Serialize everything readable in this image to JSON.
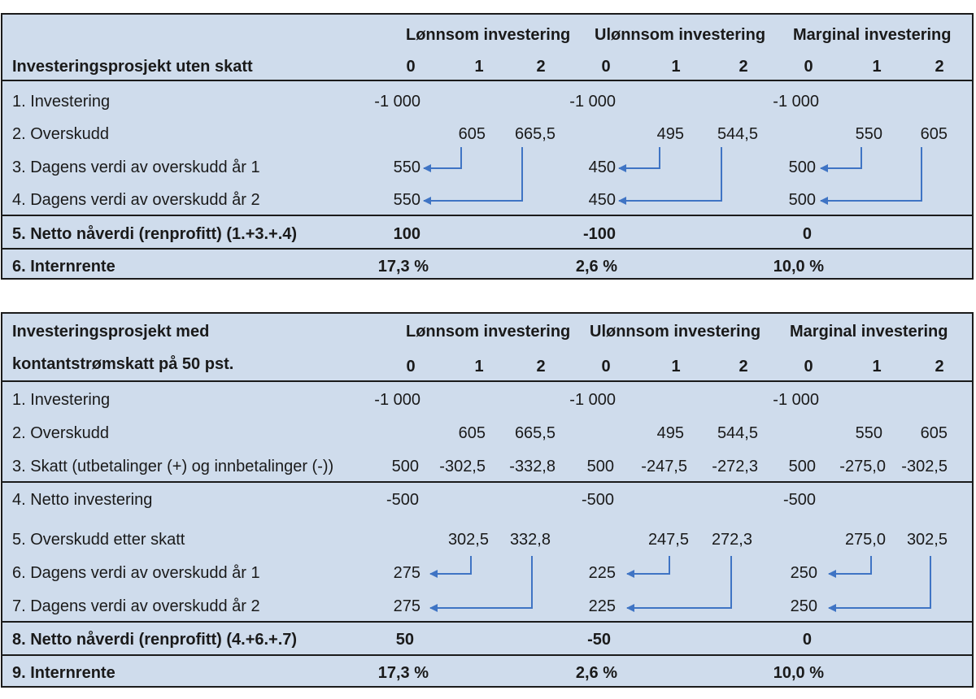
{
  "colors": {
    "panel_bg": "#cfdcec",
    "border": "#1b1b1b",
    "arrow": "#3f74c4"
  },
  "groups": [
    "Lønnsom investering",
    "Ulønnsom investering",
    "Marginal investering"
  ],
  "years": [
    "0",
    "1",
    "2"
  ],
  "table1": {
    "title": "Investeringsprosjekt uten skatt",
    "rows": [
      {
        "label": "1. Investering",
        "cells": [
          "-1 000",
          "",
          "",
          "-1 000",
          "",
          "",
          "-1 000",
          "",
          ""
        ]
      },
      {
        "label": "2. Overskudd",
        "cells": [
          "",
          "605",
          "665,5",
          "",
          "495",
          "544,5",
          "",
          "550",
          "605"
        ]
      },
      {
        "label": "3. Dagens verdi av overskudd år 1",
        "cells": [
          "550",
          "",
          "",
          "450",
          "",
          "",
          "500",
          "",
          ""
        ]
      },
      {
        "label": "4. Dagens verdi av overskudd år 2",
        "cells": [
          "550",
          "",
          "",
          "450",
          "",
          "",
          "500",
          "",
          ""
        ]
      },
      {
        "label": "5. Netto nåverdi (renprofitt) (1.+3.+.4)",
        "cells": [
          "100",
          "",
          "",
          "-100",
          "",
          "",
          "0",
          "",
          ""
        ]
      },
      {
        "label": "6. Internrente",
        "cells": [
          "17,3 %",
          "",
          "",
          "2,6 %",
          "",
          "",
          "10,0 %",
          "",
          ""
        ]
      }
    ]
  },
  "table2": {
    "title_line1": "Investeringsprosjekt med",
    "title_line2": "kontantstrømskatt på 50 pst.",
    "rows": [
      {
        "label": "1. Investering",
        "cells": [
          "-1 000",
          "",
          "",
          "-1 000",
          "",
          "",
          "-1 000",
          "",
          ""
        ]
      },
      {
        "label": "2. Overskudd",
        "cells": [
          "",
          "605",
          "665,5",
          "",
          "495",
          "544,5",
          "",
          "550",
          "605"
        ]
      },
      {
        "label": "3. Skatt (utbetalinger (+) og innbetalinger (-))",
        "cells": [
          "500",
          "-302,5",
          "-332,8",
          "500",
          "-247,5",
          "-272,3",
          "500",
          "-275,0",
          "-302,5"
        ]
      },
      {
        "label": "4. Netto investering",
        "cells": [
          "-500",
          "",
          "",
          "-500",
          "",
          "",
          "-500",
          "",
          ""
        ]
      },
      {
        "label": "5. Overskudd etter skatt",
        "cells": [
          "",
          "302,5",
          "332,8",
          "",
          "247,5",
          "272,3",
          "",
          "275,0",
          "302,5"
        ]
      },
      {
        "label": "6. Dagens verdi av overskudd år 1",
        "cells": [
          "275",
          "",
          "",
          "225",
          "",
          "",
          "250",
          "",
          ""
        ]
      },
      {
        "label": "7. Dagens verdi av overskudd år 2",
        "cells": [
          "275",
          "",
          "",
          "225",
          "",
          "",
          "250",
          "",
          ""
        ]
      },
      {
        "label": "8. Netto nåverdi (renprofitt) (4.+6.+.7)",
        "cells": [
          "50",
          "",
          "",
          "-50",
          "",
          "",
          "0",
          "",
          ""
        ]
      },
      {
        "label": "9. Internrente",
        "cells": [
          "17,3 %",
          "",
          "",
          "2,6 %",
          "",
          "",
          "10,0 %",
          "",
          ""
        ]
      }
    ]
  }
}
